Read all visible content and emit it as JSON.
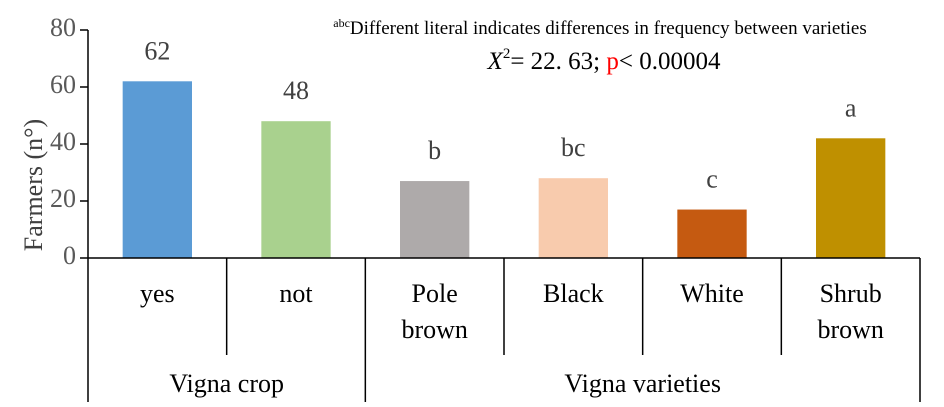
{
  "chart_data": {
    "type": "bar",
    "y_label": "Farmers (n°)",
    "note_sup": "abc",
    "note": "Different literal indicates differences in frequency between varieties",
    "stat": {
      "symbol": "X",
      "exponent": "2",
      "text": "= 22. 63; ",
      "p": "p",
      "p_text": "< 0.00004"
    },
    "categories": [
      "yes",
      "not",
      "Pole brown",
      "Black",
      "White",
      "Shrub brown"
    ],
    "values": [
      62,
      48,
      27,
      28,
      17,
      42
    ],
    "letters": [
      null,
      null,
      "b",
      "bc",
      "c",
      "a"
    ],
    "colors": [
      "#5b9bd5",
      "#a9d18e",
      "#aeaaaa",
      "#f8cbad",
      "#c55a11",
      "#bf9000"
    ],
    "groups": [
      {
        "label": "Vigna crop",
        "span": 2
      },
      {
        "label": "Vigna varieties",
        "span": 4
      }
    ],
    "ylim": [
      0,
      80
    ],
    "yticks": [
      0,
      20,
      40,
      60,
      80
    ],
    "grid": false
  }
}
